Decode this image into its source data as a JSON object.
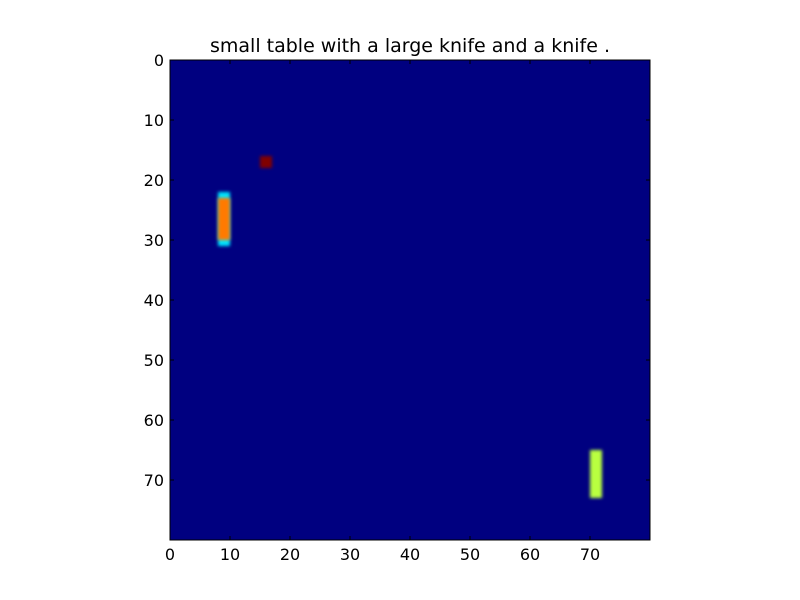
{
  "chart_data": {
    "type": "heatmap",
    "title": "small table with a large knife and a knife .",
    "xlabel": "",
    "ylabel": "",
    "xlim": [
      0,
      80
    ],
    "ylim": [
      80,
      0
    ],
    "x_ticks": [
      0,
      10,
      20,
      30,
      40,
      50,
      60,
      70
    ],
    "y_ticks": [
      0,
      10,
      20,
      30,
      40,
      50,
      60,
      70
    ],
    "grid": false,
    "colormap": "jet",
    "background_value": 0.0,
    "grid_size": [
      80,
      80
    ],
    "cells": [
      {
        "x": 15,
        "y": 16,
        "w": 2,
        "h": 2,
        "value": 1.0,
        "color": "#800000"
      },
      {
        "x": 8,
        "y": 22,
        "w": 2,
        "h": 9,
        "value": 0.35,
        "color": "#00e5ff"
      },
      {
        "x": 8,
        "y": 23,
        "w": 2,
        "h": 7,
        "value": 0.78,
        "color": "#ff7a00"
      },
      {
        "x": 70,
        "y": 65,
        "w": 2,
        "h": 8,
        "value": 0.6,
        "color": "#b9ff3f"
      }
    ],
    "colors": {
      "background": "#000080",
      "frame": "#000000"
    }
  }
}
